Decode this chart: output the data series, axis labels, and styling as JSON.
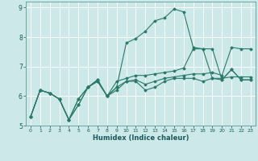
{
  "xlabel": "Humidex (Indice chaleur)",
  "ylabel": "",
  "xlim": [
    -0.5,
    23.5
  ],
  "ylim": [
    5,
    9.2
  ],
  "yticks": [
    5,
    6,
    7,
    8,
    9
  ],
  "xticks": [
    0,
    1,
    2,
    3,
    4,
    5,
    6,
    7,
    8,
    9,
    10,
    11,
    12,
    13,
    14,
    15,
    16,
    17,
    18,
    19,
    20,
    21,
    22,
    23
  ],
  "bg_color": "#cce8e8",
  "grid_color": "#ffffff",
  "line_color": "#2a7a6a",
  "series": [
    {
      "x": [
        0,
        1,
        2,
        3,
        4,
        5,
        6,
        7,
        8,
        9,
        10,
        11,
        12,
        13,
        14,
        15,
        16,
        17,
        18,
        19,
        20,
        21,
        22,
        23
      ],
      "y": [
        5.3,
        6.2,
        6.1,
        5.9,
        5.2,
        5.7,
        6.3,
        6.5,
        6.0,
        6.2,
        6.5,
        6.5,
        6.2,
        6.3,
        6.5,
        6.6,
        6.6,
        6.6,
        6.5,
        6.6,
        6.6,
        6.65,
        6.65,
        6.65
      ]
    },
    {
      "x": [
        0,
        1,
        2,
        3,
        4,
        5,
        6,
        7,
        8,
        9,
        10,
        11,
        12,
        13,
        14,
        15,
        16,
        17,
        18,
        19,
        20,
        21,
        22,
        23
      ],
      "y": [
        5.3,
        6.2,
        6.1,
        5.9,
        5.2,
        5.9,
        6.3,
        6.55,
        6.0,
        6.3,
        7.8,
        7.95,
        8.2,
        8.55,
        8.65,
        8.95,
        8.85,
        7.65,
        7.6,
        7.6,
        6.55,
        6.9,
        6.55,
        6.55
      ]
    },
    {
      "x": [
        0,
        1,
        2,
        3,
        4,
        5,
        6,
        7,
        8,
        9,
        10,
        11,
        12,
        13,
        14,
        15,
        16,
        17,
        18,
        19,
        20,
        21,
        22,
        23
      ],
      "y": [
        5.3,
        6.2,
        6.1,
        5.9,
        5.2,
        5.7,
        6.3,
        6.5,
        6.0,
        6.3,
        6.5,
        6.55,
        6.4,
        6.5,
        6.6,
        6.65,
        6.7,
        6.75,
        6.75,
        6.8,
        6.7,
        7.65,
        7.6,
        7.6
      ]
    },
    {
      "x": [
        0,
        1,
        2,
        3,
        4,
        5,
        6,
        7,
        8,
        9,
        10,
        11,
        12,
        13,
        14,
        15,
        16,
        17,
        18,
        19,
        20,
        21,
        22,
        23
      ],
      "y": [
        5.3,
        6.2,
        6.1,
        5.9,
        5.2,
        5.9,
        6.3,
        6.55,
        6.0,
        6.5,
        6.6,
        6.7,
        6.7,
        6.75,
        6.8,
        6.85,
        6.95,
        7.6,
        7.6,
        6.6,
        6.55,
        6.9,
        6.55,
        6.55
      ]
    }
  ]
}
